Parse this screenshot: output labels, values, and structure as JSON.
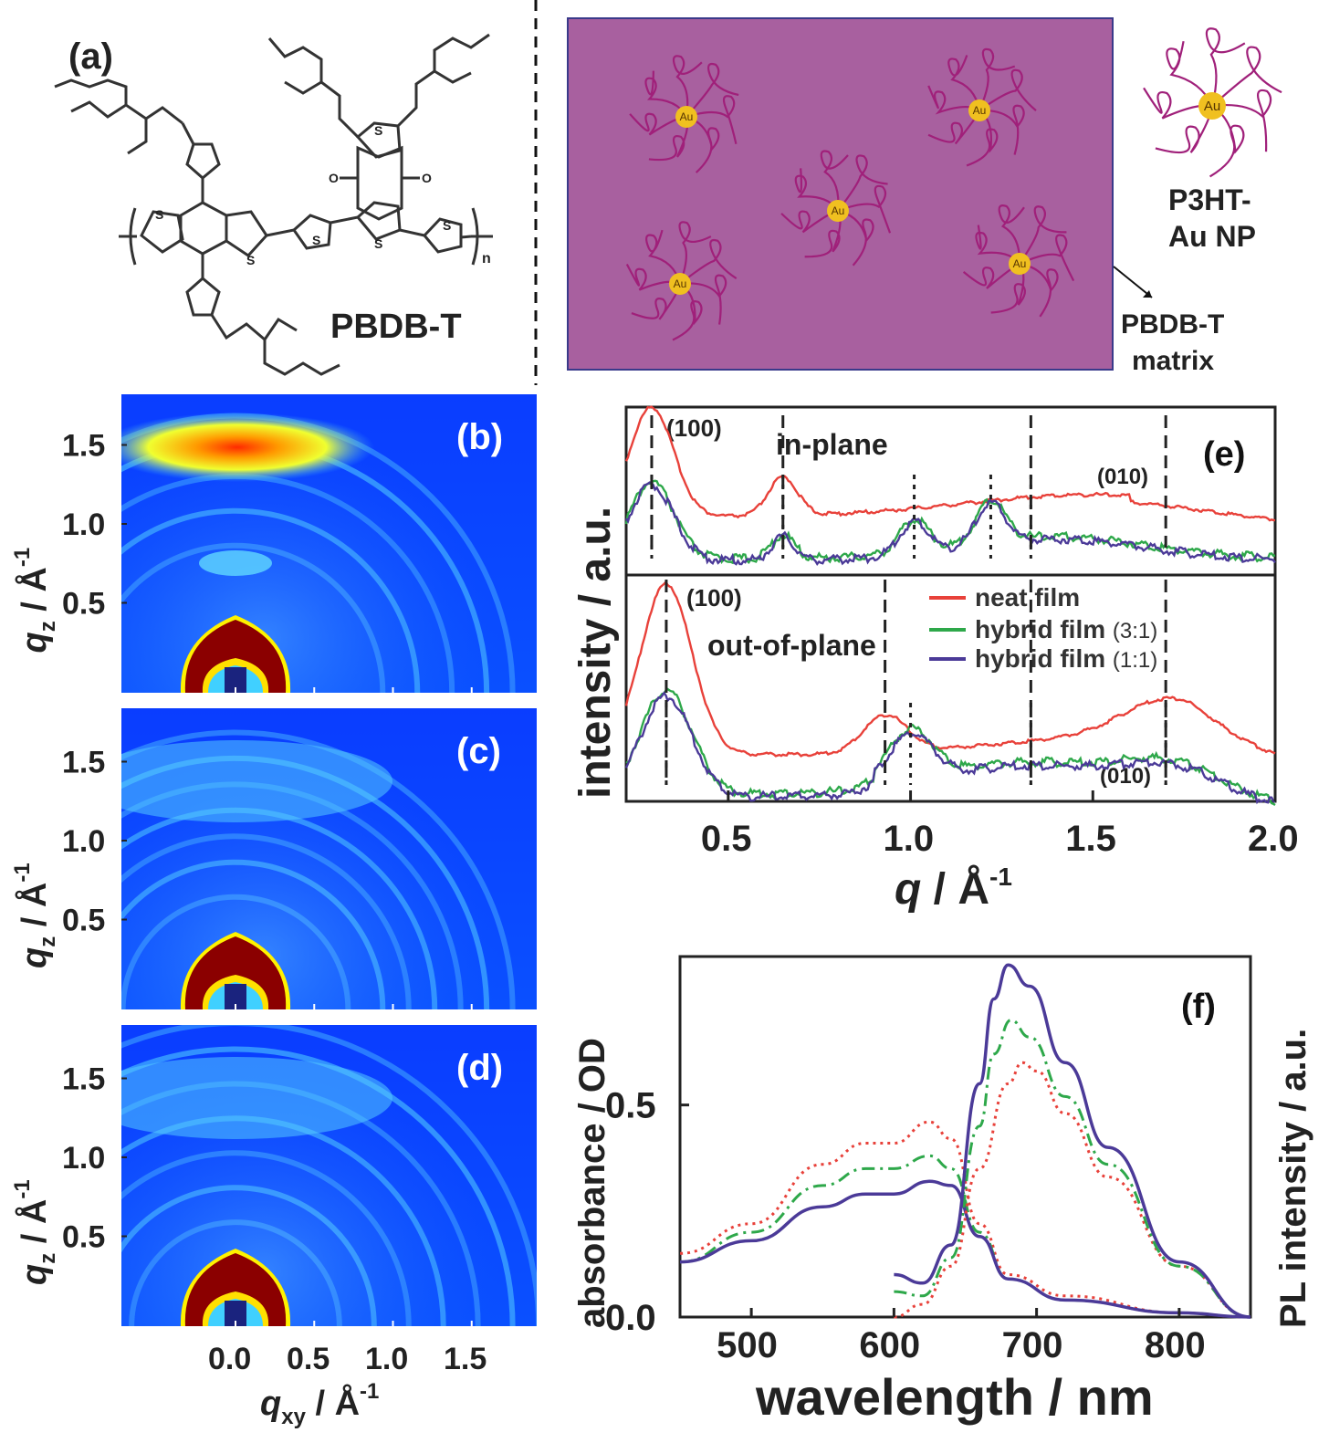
{
  "panel_a": {
    "label": "(a)",
    "molecule_name": "PBDB-T",
    "subscript_n": "n",
    "atom_S": "S",
    "atom_O": "O"
  },
  "panel_a2": {
    "matrix_label_1": "PBDB-T",
    "matrix_label_2": "matrix",
    "np_label_1": "P3HT-",
    "np_label_2": "Au NP",
    "au_label": "Au",
    "matrix_color": "#a8609f",
    "chain_color": "#a0207a",
    "au_color": "#f0c020"
  },
  "giwaxs": {
    "panels": [
      {
        "letter": "(b)",
        "y_label": "q",
        "y_sub": "z",
        "y_unit": " / Å",
        "y_sup": "-1"
      },
      {
        "letter": "(c)",
        "y_label": "q",
        "y_sub": "z",
        "y_unit": " / Å",
        "y_sup": "-1"
      },
      {
        "letter": "(d)",
        "y_label": "q",
        "y_sub": "z",
        "y_unit": " / Å",
        "y_sup": "-1"
      }
    ],
    "y_ticks": [
      "1.5",
      "1.0",
      "0.5"
    ],
    "x_ticks": [
      "0.0",
      "0.5",
      "1.0",
      "1.5"
    ],
    "x_label": "q",
    "x_sub": "xy",
    "x_unit": " / Å",
    "x_sup": "-1"
  },
  "chart_data": [
    {
      "type": "line",
      "panel": "(e)",
      "xlabel": "q / Å-1",
      "ylabel": "intensity / a.u.",
      "xlim": [
        0.22,
        2.0
      ],
      "x_ticks": [
        "0.5",
        "1.0",
        "1.5",
        "2.0"
      ],
      "subplots": [
        "in-plane",
        "out-of-plane"
      ],
      "annotations": [
        "(100)",
        "(010)",
        "(100)",
        "(010)"
      ],
      "legend": [
        "neat film",
        "hybrid film (3:1)",
        "hybrid film (1:1)"
      ],
      "legend_text": {
        "neat": "neat film",
        "h31_a": "hybrid film ",
        "h31_b": "(3:1)",
        "h11_a": "hybrid film ",
        "h11_b": "(1:1)"
      },
      "series_colors": {
        "neat film": "#e8413a",
        "hybrid film (3:1)": "#2ea84a",
        "hybrid film (1:1)": "#4b3a98"
      },
      "in_plane": {
        "peaks_neat": [
          0.29,
          0.65,
          1.33,
          1.7
        ],
        "peaks_hybrid": [
          0.29,
          0.65,
          1.01,
          1.22,
          1.33
        ]
      },
      "out_of_plane": {
        "peaks_neat": [
          0.33,
          0.93,
          1.33,
          1.7
        ],
        "peaks_hybrid": [
          0.33,
          1.0,
          1.33,
          1.7
        ]
      }
    },
    {
      "type": "line",
      "panel": "(f)",
      "xlabel": "wavelength / nm",
      "ylabel_left": "absorbance / OD",
      "ylabel_right": "PL intensity / a.u.",
      "xlim": [
        450,
        850
      ],
      "ylim_left": [
        0.0,
        0.85
      ],
      "x_ticks": [
        "500",
        "600",
        "700",
        "800"
      ],
      "y_ticks": [
        "0.0",
        "0.5"
      ],
      "series": [
        {
          "name": "neat film absorbance",
          "style": "dotted",
          "color": "#e8413a",
          "x": [
            450,
            500,
            550,
            580,
            600,
            625,
            640,
            660,
            680,
            720,
            800,
            850
          ],
          "y": [
            0.15,
            0.22,
            0.36,
            0.41,
            0.41,
            0.46,
            0.42,
            0.22,
            0.1,
            0.05,
            0.01,
            0.0
          ]
        },
        {
          "name": "hybrid film (3:1) absorbance",
          "style": "dash-dot",
          "color": "#2ea84a",
          "x": [
            450,
            500,
            550,
            580,
            600,
            625,
            640,
            660,
            680,
            720,
            800,
            850
          ],
          "y": [
            0.13,
            0.2,
            0.31,
            0.35,
            0.35,
            0.38,
            0.35,
            0.2,
            0.09,
            0.04,
            0.01,
            0.0
          ]
        },
        {
          "name": "hybrid film (1:1) absorbance",
          "style": "solid",
          "color": "#4b3a98",
          "x": [
            450,
            500,
            550,
            580,
            600,
            625,
            640,
            660,
            680,
            720,
            800,
            850
          ],
          "y": [
            0.13,
            0.18,
            0.26,
            0.29,
            0.29,
            0.32,
            0.31,
            0.19,
            0.09,
            0.04,
            0.01,
            0.0
          ]
        },
        {
          "name": "neat film PL",
          "style": "dotted",
          "color": "#e8413a",
          "x": [
            600,
            620,
            640,
            660,
            680,
            690,
            700,
            720,
            750,
            800,
            850
          ],
          "y": [
            0.0,
            0.03,
            0.12,
            0.35,
            0.55,
            0.6,
            0.58,
            0.48,
            0.33,
            0.12,
            0.0
          ]
        },
        {
          "name": "hybrid film (3:1) PL",
          "style": "dash-dot",
          "color": "#2ea84a",
          "x": [
            600,
            620,
            640,
            660,
            670,
            682,
            695,
            720,
            750,
            800,
            850
          ],
          "y": [
            0.06,
            0.05,
            0.14,
            0.45,
            0.62,
            0.7,
            0.66,
            0.52,
            0.36,
            0.12,
            0.0
          ]
        },
        {
          "name": "hybrid film (1:1) PL",
          "style": "solid",
          "color": "#4b3a98",
          "x": [
            600,
            620,
            640,
            660,
            670,
            680,
            695,
            720,
            750,
            800,
            850
          ],
          "y": [
            0.1,
            0.08,
            0.17,
            0.55,
            0.75,
            0.83,
            0.78,
            0.6,
            0.4,
            0.13,
            0.0
          ]
        }
      ]
    }
  ]
}
